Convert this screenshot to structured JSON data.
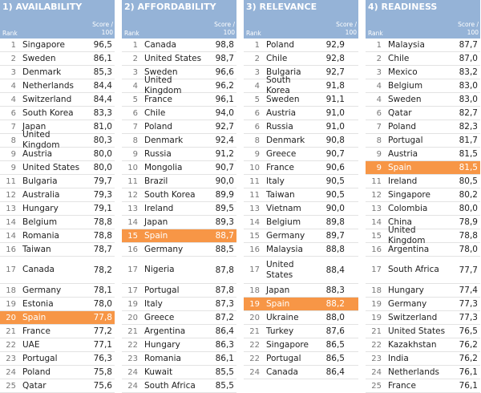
{
  "panels": [
    {
      "title": "1) AVAILABILITY",
      "rank_label": "Rank",
      "score_label": "Score / 100",
      "highlight_row": 19,
      "highlight_color": "#f79646",
      "rows": [
        [
          1,
          "Singapore",
          "96,5"
        ],
        [
          2,
          "Sweden",
          "86,1"
        ],
        [
          3,
          "Denmark",
          "85,3"
        ],
        [
          4,
          "Netherlands",
          "84,4"
        ],
        [
          4,
          "Switzerland",
          "84,4"
        ],
        [
          6,
          "South Korea",
          "83,3"
        ],
        [
          7,
          "Japan",
          "81,0"
        ],
        [
          8,
          "United Kingdom",
          "80,3"
        ],
        [
          9,
          "Austria",
          "80,0"
        ],
        [
          9,
          "United States",
          "80,0"
        ],
        [
          11,
          "Bulgaria",
          "79,7"
        ],
        [
          12,
          "Australia",
          "79,3"
        ],
        [
          13,
          "Hungary",
          "79,1"
        ],
        [
          14,
          "Belgium",
          "78,8"
        ],
        [
          14,
          "Romania",
          "78,8"
        ],
        [
          16,
          "Taiwan",
          "78,7"
        ],
        [
          17,
          "Canada",
          "78,2"
        ],
        [
          18,
          "Germany",
          "78,1"
        ],
        [
          19,
          "Estonia",
          "78,0"
        ],
        [
          20,
          "Spain",
          "77,8"
        ],
        [
          21,
          "France",
          "77,2"
        ],
        [
          22,
          "UAE",
          "77,1"
        ],
        [
          23,
          "Portugal",
          "76,3"
        ],
        [
          24,
          "Poland",
          "75,8"
        ],
        [
          25,
          "Qatar",
          "75,6"
        ]
      ]
    },
    {
      "title": "2) AFFORDABILITY",
      "rank_label": "Rank",
      "score_label": "Score / 100",
      "highlight_row": 14,
      "highlight_color": "#f79646",
      "rows": [
        [
          1,
          "Canada",
          "98,8"
        ],
        [
          2,
          "United States",
          "98,7"
        ],
        [
          3,
          "Sweden",
          "96,6"
        ],
        [
          4,
          "United Kingdom",
          "96,2"
        ],
        [
          5,
          "France",
          "96,1"
        ],
        [
          6,
          "Chile",
          "94,0"
        ],
        [
          7,
          "Poland",
          "92,7"
        ],
        [
          8,
          "Denmark",
          "92,4"
        ],
        [
          9,
          "Russia",
          "91,2"
        ],
        [
          10,
          "Mongolia",
          "90,7"
        ],
        [
          11,
          "Brazil",
          "90,0"
        ],
        [
          12,
          "South Korea",
          "89,9"
        ],
        [
          13,
          "Ireland",
          "89,5"
        ],
        [
          14,
          "Japan",
          "89,3"
        ],
        [
          15,
          "Spain",
          "88,7"
        ],
        [
          16,
          "Germany",
          "88,5"
        ],
        [
          17,
          "Nigeria",
          "87,8"
        ],
        [
          17,
          "Portugal",
          "87,8"
        ],
        [
          19,
          "Italy",
          "87,3"
        ],
        [
          20,
          "Greece",
          "87,2"
        ],
        [
          21,
          "Argentina",
          "86,4"
        ],
        [
          22,
          "Hungary",
          "86,3"
        ],
        [
          23,
          "Romania",
          "86,1"
        ],
        [
          24,
          "Kuwait",
          "85,5"
        ],
        [
          24,
          "South Africa",
          "85,5"
        ]
      ]
    },
    {
      "title": "3) RELEVANCE",
      "rank_label": "Rank",
      "score_label": "Score / 100",
      "highlight_row": 18,
      "highlight_color": "#f79646",
      "rows": [
        [
          1,
          "Poland",
          "92,9"
        ],
        [
          2,
          "Chile",
          "92,8"
        ],
        [
          3,
          "Bulgaria",
          "92,7"
        ],
        [
          4,
          "South Korea",
          "91,8"
        ],
        [
          5,
          "Sweden",
          "91,1"
        ],
        [
          6,
          "Austria",
          "91,0"
        ],
        [
          6,
          "Russia",
          "91,0"
        ],
        [
          8,
          "Denmark",
          "90,8"
        ],
        [
          9,
          "Greece",
          "90,7"
        ],
        [
          10,
          "France",
          "90,6"
        ],
        [
          11,
          "Italy",
          "90,5"
        ],
        [
          11,
          "Taiwan",
          "90,5"
        ],
        [
          13,
          "Vietnam",
          "90,0"
        ],
        [
          14,
          "Belgium",
          "89,8"
        ],
        [
          15,
          "Germany",
          "89,7"
        ],
        [
          16,
          "Malaysia",
          "88,8"
        ],
        [
          17,
          "United States",
          "88,4"
        ],
        [
          18,
          "Japan",
          "88,3"
        ],
        [
          19,
          "Spain",
          "88,2"
        ],
        [
          20,
          "Ukraine",
          "88,0"
        ],
        [
          21,
          "Turkey",
          "87,6"
        ],
        [
          22,
          "Singapore",
          "86,5"
        ],
        [
          22,
          "Portugal",
          "86,5"
        ],
        [
          24,
          "Canada",
          "86,4"
        ]
      ]
    },
    {
      "title": "4) READINESS",
      "rank_label": "Rank",
      "score_label": "Score / 100",
      "highlight_row": 9,
      "highlight_color": "#f79646",
      "rows": [
        [
          1,
          "Malaysia",
          "87,7"
        ],
        [
          2,
          "Chile",
          "87,0"
        ],
        [
          3,
          "Mexico",
          "83,2"
        ],
        [
          4,
          "Belgium",
          "83,0"
        ],
        [
          4,
          "Sweden",
          "83,0"
        ],
        [
          6,
          "Qatar",
          "82,7"
        ],
        [
          7,
          "Poland",
          "82,3"
        ],
        [
          8,
          "Portugal",
          "81,7"
        ],
        [
          9,
          "Austria",
          "81,5"
        ],
        [
          9,
          "Spain",
          "81,5"
        ],
        [
          11,
          "Ireland",
          "80,5"
        ],
        [
          12,
          "Singapore",
          "80,2"
        ],
        [
          13,
          "Colombia",
          "80,0"
        ],
        [
          14,
          "China",
          "78,9"
        ],
        [
          15,
          "United Kingdom",
          "78,8"
        ],
        [
          16,
          "Argentina",
          "78,0"
        ],
        [
          17,
          "South Africa",
          "77,7"
        ],
        [
          18,
          "Hungary",
          "77,4"
        ],
        [
          19,
          "Germany",
          "77,3"
        ],
        [
          19,
          "Switzerland",
          "77,3"
        ],
        [
          21,
          "United States",
          "76,5"
        ],
        [
          22,
          "Kazakhstan",
          "76,2"
        ],
        [
          23,
          "India",
          "76,2"
        ],
        [
          24,
          "Netherlands",
          "76,1"
        ],
        [
          25,
          "France",
          "76,1"
        ]
      ]
    }
  ]
}
